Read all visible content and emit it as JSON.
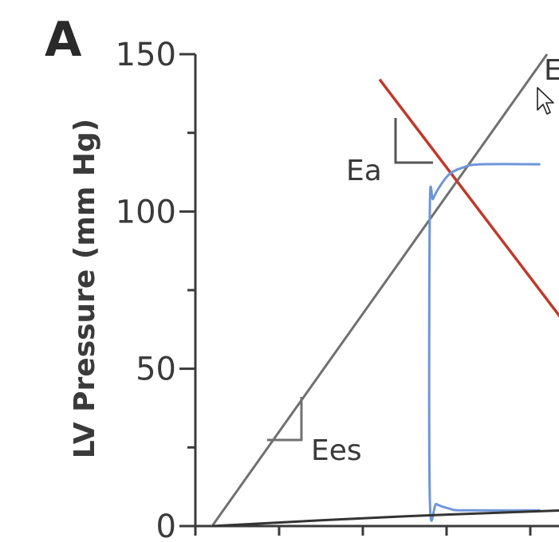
{
  "chart_data": {
    "type": "line",
    "panel_label": "A",
    "ylabel": "LV Pressure (mm Hg)",
    "ylim": [
      0,
      150
    ],
    "y_ticks": [
      0,
      50,
      100,
      150
    ],
    "y_minor_step": 25,
    "xlim": [
      0,
      110
    ],
    "series": [
      {
        "name": "Ees",
        "type": "line",
        "points": [
          [
            5,
            0
          ],
          [
            105,
            150
          ]
        ]
      },
      {
        "name": "Ea",
        "type": "line",
        "points": [
          [
            55,
            142
          ],
          [
            110,
            65
          ]
        ]
      },
      {
        "name": "PV loop",
        "type": "curve",
        "points": [
          [
            103,
            5
          ],
          [
            80,
            5
          ],
          [
            76,
            5.5
          ],
          [
            72,
            7
          ],
          [
            70,
            9
          ],
          [
            70,
            100
          ],
          [
            71,
            104
          ],
          [
            73,
            108
          ],
          [
            76,
            112
          ],
          [
            80,
            114
          ],
          [
            85,
            115
          ],
          [
            103,
            115
          ]
        ]
      },
      {
        "name": "EDPVR",
        "type": "curve",
        "points": [
          [
            5,
            0
          ],
          [
            60,
            3
          ],
          [
            110,
            5
          ]
        ]
      }
    ],
    "annotations": [
      {
        "text": "Ees"
      },
      {
        "text": "Ea"
      },
      {
        "text": "E"
      }
    ],
    "colors": {
      "axis": "#3a3a3a",
      "ees": "#707070",
      "ea": "#c0392b",
      "loop": "#6f95d8",
      "edpvr": "#333333"
    }
  }
}
